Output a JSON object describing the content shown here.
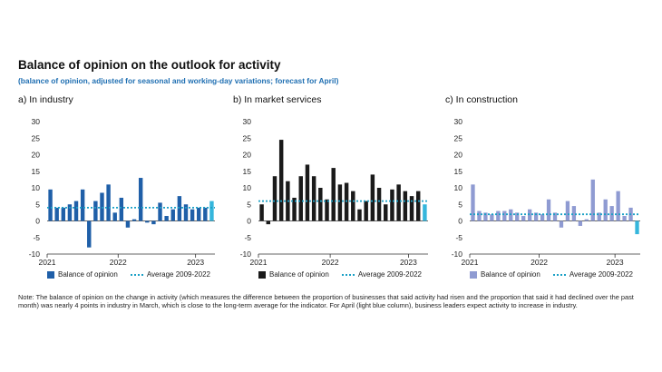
{
  "title": "Balance of opinion on the outlook for activity",
  "subtitle": "(balance of opinion, adjusted for seasonal and working-day variations; forecast for April)",
  "note": "Note: The balance of opinion on the change in activity (which measures the difference between the proportion of businesses that said activity had risen and the proportion that said it had declined over the past month) was nearly 4 points in industry in March, which is close to the long-term average for the indicator. For April (light blue column), business leaders expect activity to increase in industry.",
  "colors": {
    "industry": "#1f5fa8",
    "services": "#1a1a1a",
    "construction": "#8f9bd2",
    "forecast": "#35b6dc",
    "average": "#1aa0c6"
  },
  "chart_data": [
    {
      "type": "bar",
      "panel_title": "a)  In industry",
      "legend": {
        "series": "Balance of opinion",
        "average": "Average 2009-2022"
      },
      "yticks": [
        "30",
        "25",
        "20",
        "15",
        "10",
        "5",
        "0",
        "-5",
        "-10"
      ],
      "ylim": [
        -10,
        30
      ],
      "xticks": [
        {
          "label": "2021",
          "index": -0.5
        },
        {
          "label": "2022",
          "index": 10.5
        },
        {
          "label": "2023",
          "index": 22.5
        }
      ],
      "average": 4,
      "values": [
        9.5,
        4,
        4,
        5,
        6,
        9.5,
        -8,
        6,
        8.5,
        11,
        2.5,
        7,
        -2,
        0.5,
        13,
        -0.5,
        -1,
        5.5,
        1.5,
        3.5,
        7.5,
        5,
        3.5,
        4,
        4,
        6
      ]
    },
    {
      "type": "bar",
      "panel_title": "b)  In market services",
      "legend": {
        "series": "Balance of opinion",
        "average": "Average 2009-2022"
      },
      "yticks": [
        "30",
        "25",
        "20",
        "15",
        "10",
        "5",
        "0",
        "-5",
        "-10"
      ],
      "ylim": [
        -10,
        30
      ],
      "xticks": [
        {
          "label": "2021",
          "index": -0.5
        },
        {
          "label": "2022",
          "index": 10.5
        },
        {
          "label": "2023",
          "index": 22.5
        }
      ],
      "average": 6,
      "values": [
        5,
        -1,
        13.5,
        24.5,
        12,
        7,
        13.5,
        17,
        13.5,
        10,
        6.5,
        16,
        11,
        11.5,
        9,
        3.5,
        6,
        14,
        10,
        5,
        9.5,
        11,
        9,
        7.5,
        9,
        5
      ]
    },
    {
      "type": "bar",
      "panel_title": "c)  In construction",
      "legend": {
        "series": "Balance of opinion",
        "average": "Average 2009-2022"
      },
      "yticks": [
        "30",
        "25",
        "20",
        "15",
        "10",
        "5",
        "0",
        "-5",
        "-10"
      ],
      "ylim": [
        -10,
        30
      ],
      "xticks": [
        {
          "label": "2021",
          "index": -0.5
        },
        {
          "label": "2022",
          "index": 10.5
        },
        {
          "label": "2023",
          "index": 22.5
        }
      ],
      "average": 2,
      "values": [
        11,
        3,
        2.5,
        2,
        3,
        3,
        3.5,
        2.5,
        1.5,
        3.5,
        2.5,
        2,
        6.5,
        2.5,
        -2,
        6,
        4.5,
        -1.5,
        0.5,
        12.5,
        2.5,
        6.5,
        4.5,
        9,
        1.5,
        4,
        -4
      ]
    }
  ]
}
